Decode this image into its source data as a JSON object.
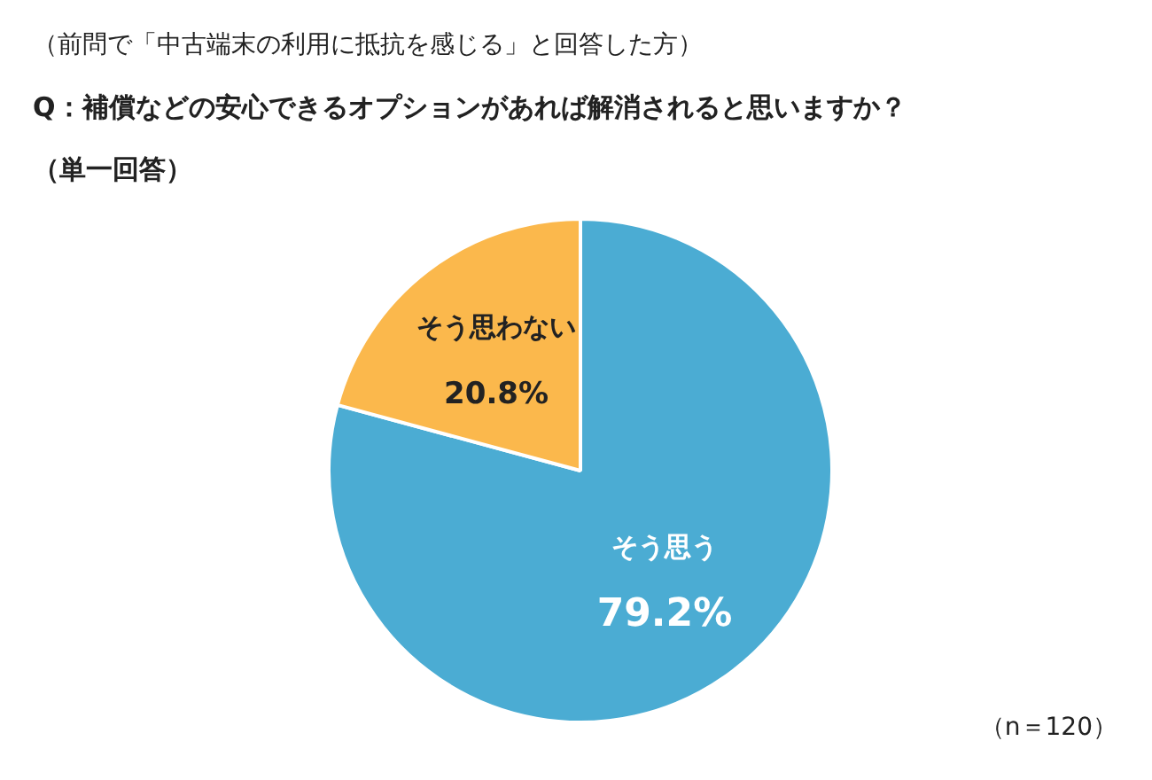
{
  "chart_data": {
    "type": "pie",
    "title": "（前問で「中古端末の利用に抵抗を感じる」と回答した方）",
    "subtitle": "Q：補償などの安心できるオプションがあれば解消されると思いますか？",
    "annotations": [
      "（単一回答）",
      "（n＝120）"
    ],
    "categories": [
      "そう思う",
      "そう思わない"
    ],
    "values": [
      79.2,
      20.8
    ],
    "colors": [
      "#4bacd3",
      "#fbb84c"
    ],
    "value_labels": [
      "79.2%",
      "20.8%"
    ]
  }
}
